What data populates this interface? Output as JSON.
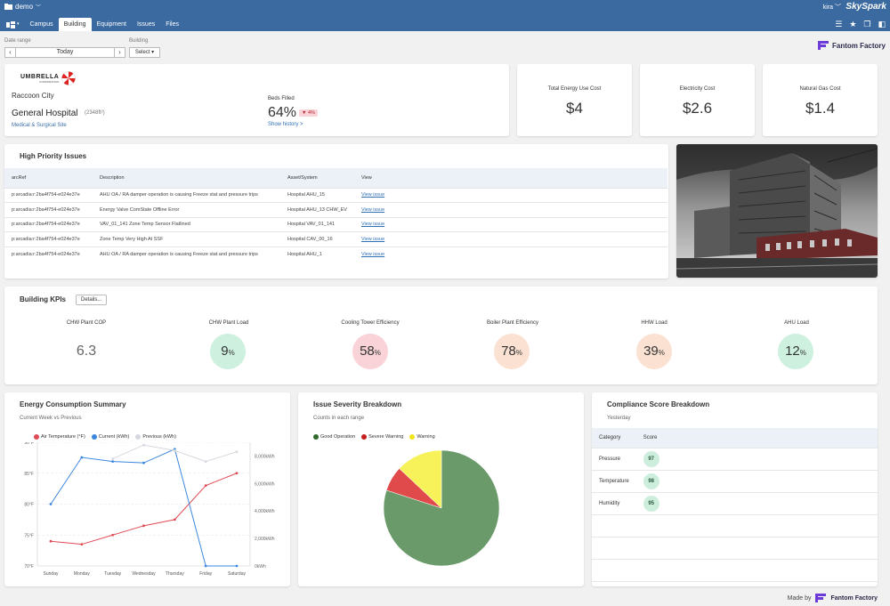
{
  "topbar": {
    "project": "demo",
    "user": "kira",
    "brand": "SkySpark",
    "tabs": [
      "Campus",
      "Building",
      "Equipment",
      "Issues",
      "Files"
    ],
    "active_tab": "Building"
  },
  "controls": {
    "date_range_label": "Date range",
    "date_value": "Today",
    "building_label": "Building",
    "building_select": "Select"
  },
  "vendor": {
    "name": "Fantom Factory"
  },
  "site": {
    "logo_word": "UMBRELLA",
    "logo_sub": "CORPORATION",
    "city": "Raccoon City",
    "name": "General Hospital",
    "area": "(2348ft²)",
    "type": "Medical & Surgical Site",
    "beds_label": "Beds Filled",
    "beds_value": "64%",
    "beds_delta": "▼ 4%",
    "history_link": "Show history >"
  },
  "costs": [
    {
      "title": "Total Energy Use Cost",
      "value": "$4"
    },
    {
      "title": "Electricity Cost",
      "value": "$2.6"
    },
    {
      "title": "Natural Gas Cost",
      "value": "$1.4"
    }
  ],
  "issues": {
    "title": "High Priority Issues",
    "columns": [
      "arcRef",
      "Description",
      "Asset/System",
      "View"
    ],
    "rows": [
      [
        "p:arcadia:r:2ba4f754-e024e37e",
        "AHU OA / RA damper operation is causing Freeze stat and pressure trips",
        "Hospital AHU_15",
        "View issue"
      ],
      [
        "p:arcadia:r:2ba4f754-e024e37e",
        "Energy Valve ComState Offline Error",
        "Hospital AHU_13 CHW_EV",
        "View issue"
      ],
      [
        "p:arcadia:r:2ba4f754-e024e37e",
        "VAV_01_141 Zone Temp Sensor Flatlined",
        "Hospital VAV_01_141",
        "View issue"
      ],
      [
        "p:arcadia:r:2ba4f754-e024e37e",
        "Zone Temp Very High At SSF",
        "Hospital CAV_00_16",
        "View issue"
      ],
      [
        "p:arcadia:r:2ba4f754-e024e37e",
        "AHU OA / RA damper operation is causing Freeze stat and pressure trips",
        "Hospital AHU_1",
        "View issue"
      ]
    ]
  },
  "kpis": {
    "title": "Building KPIs",
    "details_button": "Details...",
    "items": [
      {
        "title": "CHW Plant COP",
        "value": "6.3",
        "unit": "",
        "level": "none",
        "color": ""
      },
      {
        "title": "CHW Plant Load",
        "value": "9",
        "unit": "%",
        "level": "good",
        "color": "#cdf0df"
      },
      {
        "title": "Cooling Tower Efficiency",
        "value": "58",
        "unit": "%",
        "level": "bad",
        "color": "#f9d3d7"
      },
      {
        "title": "Boiler Plant Efficiency",
        "value": "78",
        "unit": "%",
        "level": "warn",
        "color": "#fbe1d1"
      },
      {
        "title": "HHW Load",
        "value": "39",
        "unit": "%",
        "level": "warn",
        "color": "#fbe1d1"
      },
      {
        "title": "AHU Load",
        "value": "12",
        "unit": "%",
        "level": "good",
        "color": "#cdf0df"
      }
    ]
  },
  "energy": {
    "title": "Energy Consumption Summary",
    "subtitle": "Current Week vs Previous"
  },
  "severity": {
    "title": "Issue Severity Breakdown",
    "subtitle": "Counts in each range"
  },
  "compliance": {
    "title": "Compliance Score Breakdown",
    "subtitle": "Yesterday",
    "columns": [
      "Category",
      "Score"
    ],
    "rows": [
      {
        "category": "Pressure",
        "score": "97"
      },
      {
        "category": "Temperature",
        "score": "98"
      },
      {
        "category": "Humidity",
        "score": "95"
      }
    ]
  },
  "footer": {
    "made_by": "Made by",
    "vendor": "Fantom Factory"
  },
  "chart_data": [
    {
      "type": "line",
      "title": "",
      "categories": [
        "Sunday",
        "Monday",
        "Tuesday",
        "Wednesday",
        "Thursday",
        "Friday",
        "Saturday"
      ],
      "y_left_ticks": [
        "70°F",
        "75°F",
        "80°F",
        "85°F",
        "90°F"
      ],
      "y_left_range": [
        70,
        90
      ],
      "y_right_ticks": [
        "0kWh",
        "2,000kWh",
        "4,000kWh",
        "6,000kWh",
        "8,000kWh"
      ],
      "y_right_range": [
        0,
        9000
      ],
      "legend_position": "top",
      "grid": true,
      "series": [
        {
          "name": "Air Temperature (°F)",
          "axis": "left",
          "color": "#e04a55",
          "values": [
            74,
            73.5,
            75,
            76.5,
            77.5,
            83,
            85
          ]
        },
        {
          "name": "Current (kWh)",
          "axis": "right",
          "color": "#3b87e0",
          "values": [
            4500,
            7900,
            7600,
            7500,
            8500,
            0,
            0
          ]
        },
        {
          "name": "Previous (kWh)",
          "axis": "right",
          "color": "#d4d8de",
          "values": [
            null,
            null,
            7800,
            8800,
            8400,
            7600,
            8300
          ]
        }
      ]
    },
    {
      "type": "pie",
      "title": "",
      "legend_position": "top",
      "slices": [
        {
          "label": "Good Operation",
          "value": 80,
          "color": "#6a9a6a"
        },
        {
          "label": "Severe Warning",
          "value": 7,
          "color": "#e04a4a"
        },
        {
          "label": "Warning",
          "value": 13,
          "color": "#f7f25a"
        }
      ]
    }
  ]
}
